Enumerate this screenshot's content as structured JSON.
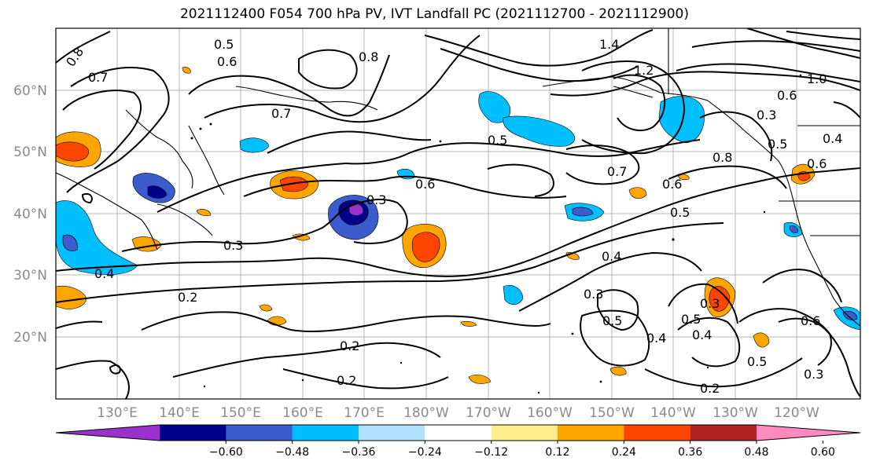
{
  "title": "2021112400 F054 700 hPa PV, IVT Landfall PC (2021112700 - 2021112900)",
  "latitude_labels": [
    "60°N",
    "50°N",
    "40°N",
    "30°N",
    "20°N"
  ],
  "longitude_labels": [
    "130°E",
    "140°E",
    "150°E",
    "160°E",
    "170°E",
    "180°W",
    "170°W",
    "160°W",
    "150°W",
    "140°W",
    "130°W",
    "120°W"
  ],
  "contour_labels": [
    "0.8",
    "0.7",
    "0.5",
    "0.6",
    "0.8",
    "0.7",
    "1.4",
    "1.2",
    "1.0",
    "0.6",
    "0.3",
    "0.5",
    "0.4",
    "0.8",
    "0.6",
    "0.7",
    "0.6",
    "0.5",
    "0.3",
    "0.6",
    "0.3",
    "0.4",
    "0.2",
    "0.4",
    "0.3",
    "0.5",
    "0.4",
    "0.3",
    "0.5",
    "0.4",
    "0.5",
    "0.5",
    "0.3",
    "0.2",
    "0.2",
    "0.2",
    "0.6"
  ],
  "colorbar": {
    "tick_labels": [
      "−0.60",
      "−0.48",
      "−0.36",
      "−0.24",
      "−0.12",
      "0.12",
      "0.24",
      "0.36",
      "0.48",
      "0.60"
    ],
    "colors": [
      "#9932cc",
      "#00008b",
      "#3a5ccc",
      "#00bfff",
      "#b0e2ff",
      "#ffffff",
      "#ffec8b",
      "#ffa500",
      "#ff4500",
      "#b22222",
      "#ff8ac0"
    ]
  }
}
